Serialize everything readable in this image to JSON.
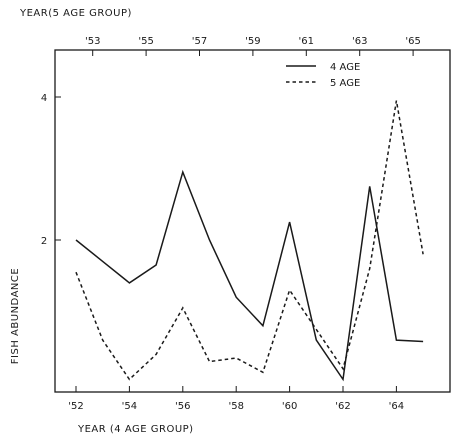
{
  "chart_data": {
    "type": "line",
    "title": "",
    "xlabel": "YEAR (4 AGE GROUP)",
    "x2label": "YEAR(5 AGE GROUP)",
    "ylabel": "FISH ABUNDANCE",
    "x_ticks": [
      "'52",
      "'54",
      "'56",
      "'58",
      "'60",
      "'62",
      "'64"
    ],
    "x2_ticks": [
      "'53",
      "'55",
      "'57",
      "'59",
      "'61",
      "'63",
      "'65"
    ],
    "y_ticks": [
      "2",
      "4"
    ],
    "ylim": [
      0,
      4.8
    ],
    "grid": false,
    "legend_position": "top-right",
    "series": [
      {
        "name": "4 AGE",
        "style": "solid",
        "x_axis": "YEAR (4 AGE GROUP)",
        "points": [
          [
            1952,
            2.0
          ],
          [
            1953,
            1.7
          ],
          [
            1954,
            1.4
          ],
          [
            1955,
            1.65
          ],
          [
            1956,
            2.95
          ],
          [
            1957,
            2.0
          ],
          [
            1958,
            1.2
          ],
          [
            1959,
            0.8
          ],
          [
            1960,
            2.25
          ],
          [
            1961,
            0.6
          ],
          [
            1962,
            0.05
          ],
          [
            1963,
            2.75
          ],
          [
            1964,
            0.6
          ],
          [
            1965,
            0.58
          ]
        ]
      },
      {
        "name": "5 AGE",
        "style": "dashed",
        "x_axis": "YEAR (4 AGE GROUP)",
        "points": [
          [
            1952,
            1.55
          ],
          [
            1953,
            0.6
          ],
          [
            1954,
            0.05
          ],
          [
            1955,
            0.4
          ],
          [
            1956,
            1.05
          ],
          [
            1957,
            0.3
          ],
          [
            1958,
            0.35
          ],
          [
            1959,
            0.15
          ],
          [
            1960,
            1.3
          ],
          [
            1961,
            0.75
          ],
          [
            1962,
            0.2
          ],
          [
            1963,
            1.6
          ],
          [
            1964,
            3.95
          ],
          [
            1965,
            1.8
          ]
        ]
      }
    ]
  },
  "colors": {
    "ink": "#1a1a1a",
    "background": "#ffffff"
  }
}
